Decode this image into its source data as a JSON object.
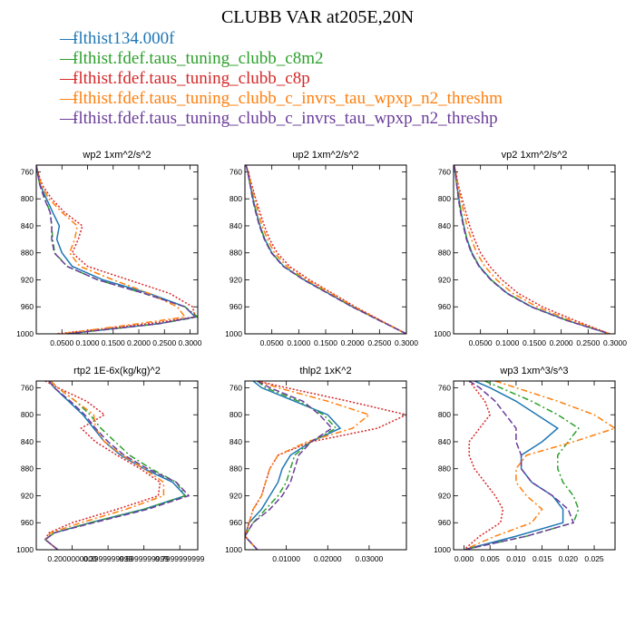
{
  "title": "CLUBB VAR at205E,20N",
  "legend": [
    {
      "name": "flthist134.000f",
      "color": "#1f77b4"
    },
    {
      "name": "flthist.fdef.taus_tuning_clubb_c8m2",
      "color": "#2ca02c"
    },
    {
      "name": "flthist.fdef.taus_tuning_clubb_c8p",
      "color": "#d62728"
    },
    {
      "name": "flthist.fdef.taus_tuning_clubb_c_invrs_tau_wpxp_n2_threshm",
      "color": "#ff7f0e"
    },
    {
      "name": "flthist.fdef.taus_tuning_clubb_c_invrs_tau_wpxp_n2_threshp",
      "color": "#6a3d9a"
    }
  ],
  "y_axis": {
    "ticks": [
      760,
      800,
      840,
      880,
      920,
      960,
      1000
    ],
    "ylim": [
      1000,
      750
    ],
    "inverted": true
  },
  "chart_data": [
    {
      "type": "line",
      "title": "wp2  1xm^2/s^2",
      "xlim": [
        0.0,
        0.315
      ],
      "xticks": [
        0.05,
        0.1,
        0.15,
        0.2,
        0.25,
        0.3
      ],
      "xticklabels": [
        "0.0500",
        "0.1000",
        "0.1500",
        "0.2000",
        "0.2500",
        "0.3000"
      ],
      "y": [
        750,
        760,
        780,
        800,
        820,
        840,
        860,
        880,
        900,
        920,
        940,
        960,
        975,
        985,
        1000
      ],
      "series": [
        {
          "color": "#1f77b4",
          "dash": "",
          "values": [
            0.0,
            0.002,
            0.008,
            0.02,
            0.032,
            0.045,
            0.04,
            0.05,
            0.07,
            0.13,
            0.22,
            0.29,
            0.31,
            0.24,
            0.06
          ]
        },
        {
          "color": "#2ca02c",
          "dash": "7,3,2,3",
          "values": [
            0.0,
            0.002,
            0.007,
            0.017,
            0.027,
            0.03,
            0.032,
            0.036,
            0.06,
            0.12,
            0.21,
            0.29,
            0.315,
            0.24,
            0.06
          ]
        },
        {
          "color": "#d62728",
          "dash": "2,2",
          "values": [
            0.0,
            0.003,
            0.012,
            0.03,
            0.055,
            0.09,
            0.082,
            0.07,
            0.1,
            0.18,
            0.26,
            0.305,
            0.31,
            0.22,
            0.04
          ]
        },
        {
          "color": "#ff7f0e",
          "dash": "7,3,2,3",
          "values": [
            0.0,
            0.003,
            0.01,
            0.025,
            0.05,
            0.08,
            0.075,
            0.065,
            0.085,
            0.15,
            0.22,
            0.275,
            0.29,
            0.2,
            0.05
          ]
        },
        {
          "color": "#6a3d9a",
          "dash": "7,3",
          "values": [
            0.0,
            0.002,
            0.007,
            0.016,
            0.027,
            0.03,
            0.03,
            0.035,
            0.06,
            0.12,
            0.21,
            0.29,
            0.31,
            0.24,
            0.06
          ]
        }
      ]
    },
    {
      "type": "line",
      "title": "up2  1xm^2/s^2",
      "xlim": [
        0.0,
        0.3
      ],
      "xticks": [
        0.05,
        0.1,
        0.15,
        0.2,
        0.25,
        0.3
      ],
      "xticklabels": [
        "0.0500",
        "0.1000",
        "0.1500",
        "0.2000",
        "0.2500",
        "0.3000"
      ],
      "y": [
        750,
        760,
        780,
        800,
        820,
        840,
        860,
        880,
        900,
        920,
        940,
        960,
        980,
        1000
      ],
      "series": [
        {
          "color": "#1f77b4",
          "dash": "",
          "values": [
            0.002,
            0.005,
            0.01,
            0.015,
            0.021,
            0.028,
            0.037,
            0.05,
            0.072,
            0.11,
            0.155,
            0.2,
            0.25,
            0.3
          ]
        },
        {
          "color": "#2ca02c",
          "dash": "7,3,2,3",
          "values": [
            0.002,
            0.005,
            0.01,
            0.015,
            0.021,
            0.028,
            0.037,
            0.05,
            0.072,
            0.11,
            0.155,
            0.2,
            0.25,
            0.3
          ]
        },
        {
          "color": "#d62728",
          "dash": "2,2",
          "values": [
            0.002,
            0.006,
            0.013,
            0.02,
            0.028,
            0.036,
            0.046,
            0.06,
            0.083,
            0.12,
            0.163,
            0.205,
            0.252,
            0.3
          ]
        },
        {
          "color": "#ff7f0e",
          "dash": "7,3,2,3",
          "values": [
            0.002,
            0.006,
            0.012,
            0.018,
            0.025,
            0.032,
            0.042,
            0.055,
            0.078,
            0.115,
            0.16,
            0.203,
            0.251,
            0.3
          ]
        },
        {
          "color": "#6a3d9a",
          "dash": "7,3",
          "values": [
            0.002,
            0.005,
            0.01,
            0.014,
            0.02,
            0.027,
            0.036,
            0.049,
            0.071,
            0.109,
            0.154,
            0.199,
            0.249,
            0.3
          ]
        }
      ]
    },
    {
      "type": "line",
      "title": "vp2  1xm^2/s^2",
      "xlim": [
        0.0,
        0.3
      ],
      "xticks": [
        0.05,
        0.1,
        0.15,
        0.2,
        0.25,
        0.3
      ],
      "xticklabels": [
        "0.0500",
        "0.1000",
        "0.1500",
        "0.2000",
        "0.2500",
        "0.3000"
      ],
      "y": [
        750,
        760,
        780,
        800,
        820,
        840,
        860,
        880,
        900,
        920,
        940,
        960,
        980,
        1000
      ],
      "series": [
        {
          "color": "#1f77b4",
          "dash": "",
          "values": [
            0.001,
            0.003,
            0.006,
            0.01,
            0.014,
            0.019,
            0.025,
            0.034,
            0.048,
            0.07,
            0.1,
            0.145,
            0.21,
            0.29
          ]
        },
        {
          "color": "#2ca02c",
          "dash": "7,3,2,3",
          "values": [
            0.001,
            0.003,
            0.006,
            0.01,
            0.014,
            0.019,
            0.025,
            0.034,
            0.048,
            0.07,
            0.1,
            0.145,
            0.21,
            0.29
          ]
        },
        {
          "color": "#d62728",
          "dash": "2,2",
          "values": [
            0.001,
            0.004,
            0.009,
            0.016,
            0.023,
            0.03,
            0.039,
            0.05,
            0.067,
            0.09,
            0.12,
            0.165,
            0.225,
            0.29
          ]
        },
        {
          "color": "#ff7f0e",
          "dash": "7,3,2,3",
          "values": [
            0.001,
            0.004,
            0.008,
            0.013,
            0.019,
            0.025,
            0.033,
            0.043,
            0.058,
            0.08,
            0.11,
            0.155,
            0.217,
            0.29
          ]
        },
        {
          "color": "#6a3d9a",
          "dash": "7,3",
          "values": [
            0.001,
            0.003,
            0.006,
            0.009,
            0.013,
            0.018,
            0.024,
            0.033,
            0.047,
            0.069,
            0.099,
            0.144,
            0.209,
            0.29
          ]
        }
      ]
    },
    {
      "type": "line",
      "title": "rtp2  1E-6x(kg/kg)^2",
      "xlim": [
        0.0,
        0.9
      ],
      "xticks": [
        0.2,
        0.4,
        0.6,
        0.8
      ],
      "xticklabels": [
        "0.2000000000",
        "0.3999999999",
        "0.5999999999",
        "0.7999999999"
      ],
      "y": [
        750,
        760,
        780,
        800,
        820,
        840,
        860,
        880,
        900,
        920,
        940,
        960,
        975,
        985,
        1000
      ],
      "series": [
        {
          "color": "#1f77b4",
          "dash": "",
          "values": [
            0.07,
            0.1,
            0.18,
            0.26,
            0.32,
            0.38,
            0.47,
            0.6,
            0.76,
            0.83,
            0.6,
            0.3,
            0.1,
            0.05,
            0.12
          ]
        },
        {
          "color": "#2ca02c",
          "dash": "7,3,2,3",
          "values": [
            0.08,
            0.12,
            0.22,
            0.3,
            0.36,
            0.44,
            0.52,
            0.64,
            0.78,
            0.83,
            0.6,
            0.3,
            0.1,
            0.05,
            0.12
          ]
        },
        {
          "color": "#d62728",
          "dash": "2,2",
          "values": [
            0.05,
            0.12,
            0.28,
            0.38,
            0.25,
            0.33,
            0.45,
            0.58,
            0.69,
            0.68,
            0.45,
            0.2,
            0.07,
            0.05,
            0.12
          ]
        },
        {
          "color": "#ff7f0e",
          "dash": "7,3,2,3",
          "values": [
            0.08,
            0.12,
            0.22,
            0.32,
            0.33,
            0.38,
            0.48,
            0.6,
            0.71,
            0.71,
            0.5,
            0.25,
            0.08,
            0.05,
            0.12
          ]
        },
        {
          "color": "#6a3d9a",
          "dash": "7,3",
          "values": [
            0.07,
            0.1,
            0.19,
            0.27,
            0.33,
            0.4,
            0.49,
            0.62,
            0.78,
            0.85,
            0.62,
            0.32,
            0.1,
            0.05,
            0.12
          ]
        }
      ]
    },
    {
      "type": "line",
      "title": "thlp2  1xK^2",
      "xlim": [
        0.0,
        0.039
      ],
      "xticks": [
        0.01,
        0.02,
        0.03
      ],
      "xticklabels": [
        "0.01000",
        "0.02000",
        "0.03000"
      ],
      "y": [
        750,
        760,
        780,
        800,
        820,
        840,
        860,
        880,
        900,
        920,
        940,
        960,
        980,
        1000
      ],
      "series": [
        {
          "color": "#1f77b4",
          "dash": "",
          "values": [
            0.002,
            0.004,
            0.012,
            0.02,
            0.023,
            0.016,
            0.011,
            0.009,
            0.008,
            0.006,
            0.004,
            0.001,
            0.0,
            0.003
          ]
        },
        {
          "color": "#2ca02c",
          "dash": "7,3,2,3",
          "values": [
            0.003,
            0.005,
            0.013,
            0.019,
            0.022,
            0.016,
            0.012,
            0.011,
            0.01,
            0.008,
            0.005,
            0.002,
            0.0,
            0.003
          ]
        },
        {
          "color": "#d62728",
          "dash": "2,2",
          "values": [
            0.003,
            0.01,
            0.025,
            0.039,
            0.032,
            0.016,
            0.008,
            0.006,
            0.005,
            0.004,
            0.002,
            0.001,
            0.0,
            0.003
          ]
        },
        {
          "color": "#ff7f0e",
          "dash": "7,3,2,3",
          "values": [
            0.003,
            0.008,
            0.02,
            0.03,
            0.026,
            0.015,
            0.008,
            0.006,
            0.005,
            0.004,
            0.002,
            0.001,
            0.0,
            0.003
          ]
        },
        {
          "color": "#6a3d9a",
          "dash": "7,3",
          "values": [
            0.003,
            0.006,
            0.014,
            0.018,
            0.021,
            0.016,
            0.013,
            0.012,
            0.011,
            0.009,
            0.006,
            0.002,
            0.0,
            0.003
          ]
        }
      ]
    },
    {
      "type": "line",
      "title": "wp3  1xm^3/s^3",
      "xlim": [
        -0.002,
        0.029
      ],
      "xticks": [
        0.0,
        0.005,
        0.01,
        0.015,
        0.02,
        0.025
      ],
      "xticklabels": [
        "0.000",
        "0.005",
        "0.010",
        "0.015",
        "0.020",
        "0.025"
      ],
      "y": [
        750,
        760,
        780,
        800,
        820,
        840,
        860,
        880,
        900,
        920,
        940,
        960,
        980,
        1000
      ],
      "series": [
        {
          "color": "#1f77b4",
          "dash": "",
          "values": [
            0.002,
            0.005,
            0.01,
            0.014,
            0.018,
            0.015,
            0.011,
            0.011,
            0.013,
            0.017,
            0.019,
            0.019,
            0.01,
            0.0
          ]
        },
        {
          "color": "#2ca02c",
          "dash": "7,3,2,3",
          "values": [
            0.004,
            0.007,
            0.013,
            0.018,
            0.022,
            0.02,
            0.018,
            0.018,
            0.019,
            0.021,
            0.022,
            0.021,
            0.012,
            0.0
          ]
        },
        {
          "color": "#d62728",
          "dash": "2,2",
          "values": [
            0.001,
            0.002,
            0.004,
            0.005,
            0.003,
            0.001,
            0.001,
            0.002,
            0.004,
            0.006,
            0.0075,
            0.007,
            0.003,
            0.0
          ]
        },
        {
          "color": "#ff7f0e",
          "dash": "7,3,2,3",
          "values": [
            0.006,
            0.01,
            0.018,
            0.025,
            0.029,
            0.021,
            0.012,
            0.01,
            0.01,
            0.012,
            0.015,
            0.013,
            0.006,
            0.0
          ]
        },
        {
          "color": "#6a3d9a",
          "dash": "7,3",
          "values": [
            0.001,
            0.003,
            0.006,
            0.008,
            0.01,
            0.01,
            0.011,
            0.011,
            0.013,
            0.017,
            0.02,
            0.021,
            0.012,
            0.0
          ]
        }
      ]
    }
  ]
}
